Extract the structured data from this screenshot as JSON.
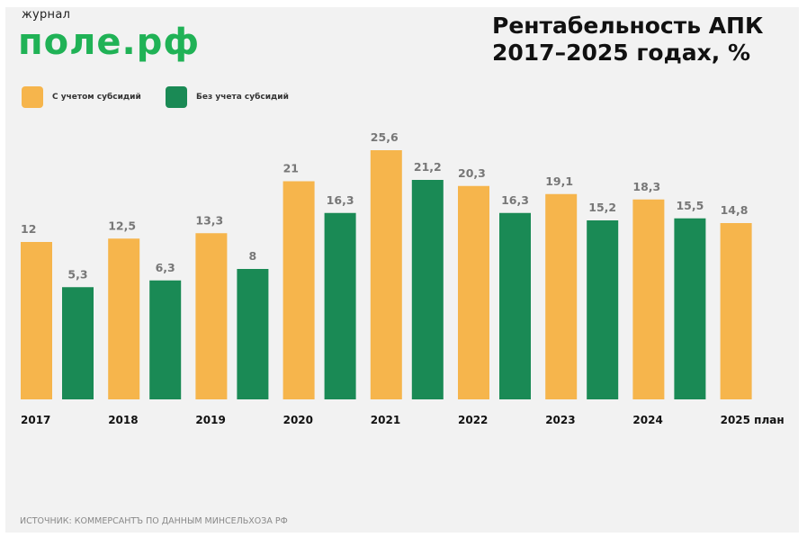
{
  "logo": {
    "sub": "журнал",
    "main": "поле.рф"
  },
  "chart_data": {
    "type": "bar",
    "title": "Рентабельность АПК 2017–2025 годах, %",
    "title_lines": [
      "Рентабельность АПК",
      "2017–2025 годах, %"
    ],
    "categories": [
      "2017",
      "2018",
      "2019",
      "2020",
      "2021",
      "2022",
      "2023",
      "2024",
      "2025 план"
    ],
    "series": [
      {
        "name": "С учетом субсидий",
        "color": "#f6b54c",
        "values": [
          12,
          12.5,
          13.3,
          21,
          25.6,
          20.3,
          19.1,
          18.3,
          14.8
        ],
        "labels": [
          "12",
          "12,5",
          "13,3",
          "21",
          "25,6",
          "20,3",
          "19,1",
          "18,3",
          "14,8"
        ]
      },
      {
        "name": "Без учета субсидий",
        "color": "#1a8a55",
        "values": [
          5.3,
          6.3,
          8,
          16.3,
          21.2,
          16.3,
          15.2,
          15.5,
          null
        ],
        "labels": [
          "5,3",
          "6,3",
          "8",
          "16,3",
          "21,2",
          "16,3",
          "15,2",
          "15,5",
          ""
        ]
      }
    ],
    "legend": "top-left",
    "grid": false
  },
  "source": "ИСТОЧНИК: КОММЕРСАНТЪ ПО ДАННЫМ МИНСЕЛЬХОЗА РФ"
}
